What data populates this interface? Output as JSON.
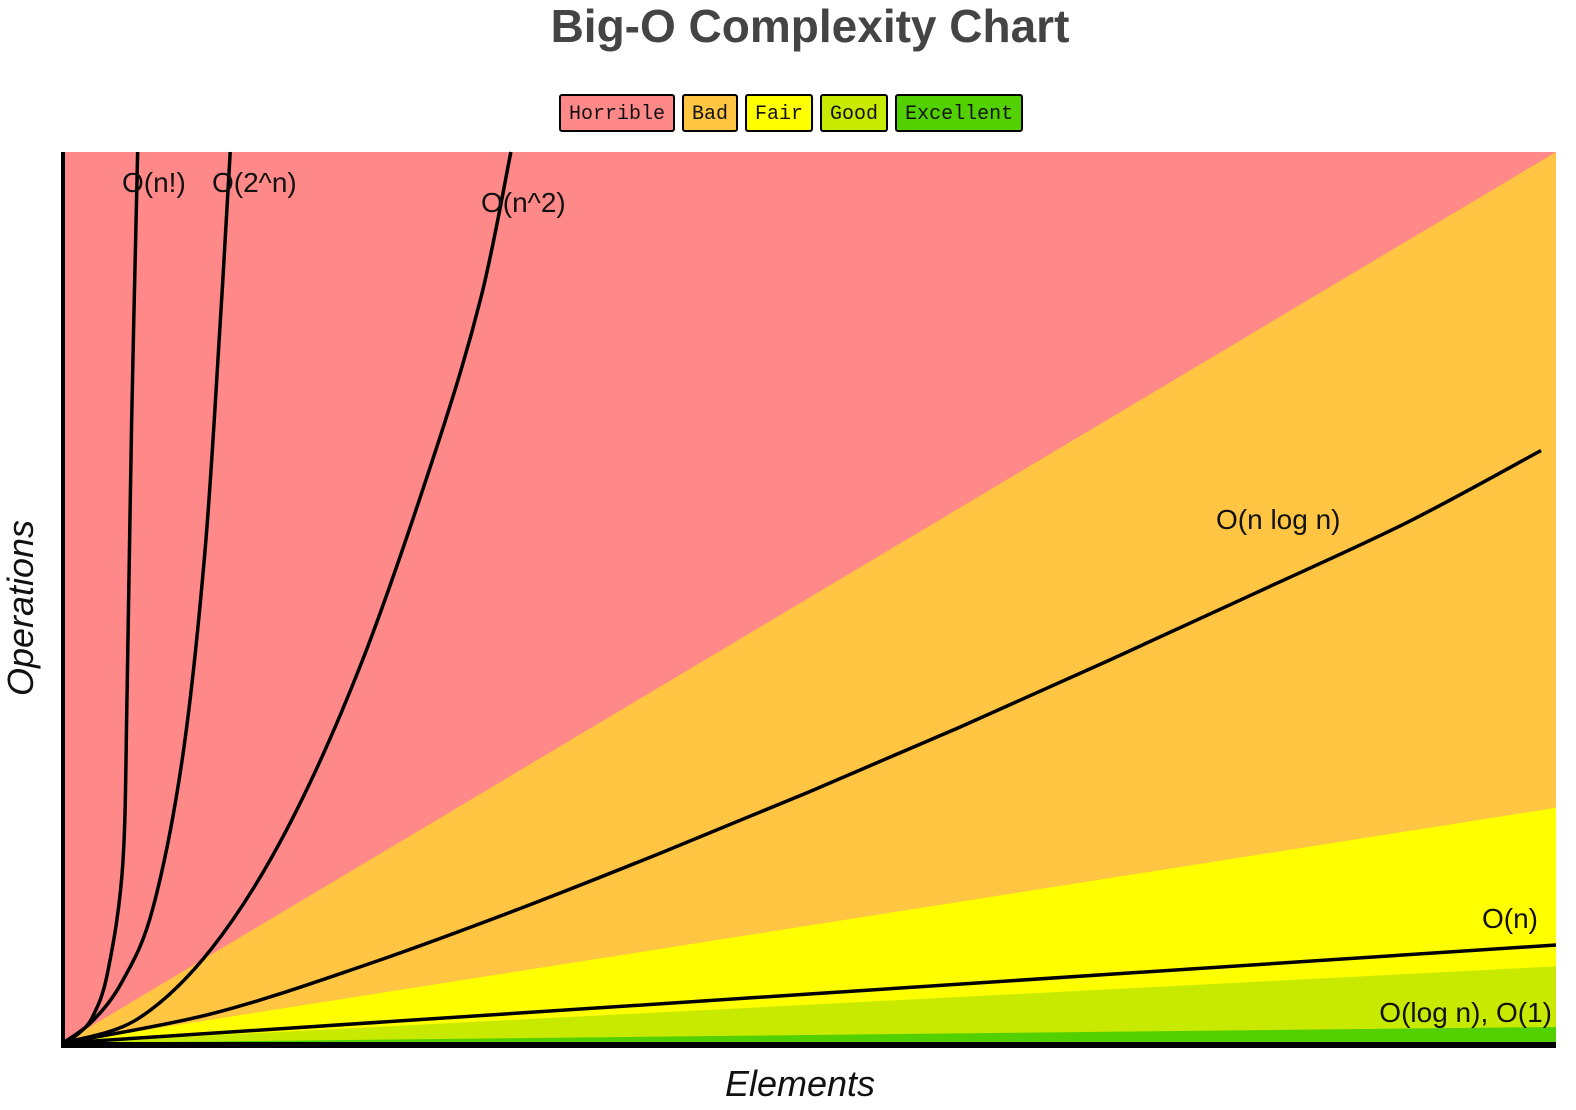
{
  "chart_data": {
    "type": "line",
    "title": "Big-O Complexity Chart",
    "xlabel": "Elements",
    "ylabel": "Operations",
    "grid": false,
    "legend": {
      "placement": "top-center",
      "entries": [
        {
          "label": "Horrible",
          "color": "#ff8989"
        },
        {
          "label": "Bad",
          "color": "#ffc543"
        },
        {
          "label": "Fair",
          "color": "#ffff00"
        },
        {
          "label": "Good",
          "color": "#c8ea00"
        },
        {
          "label": "Excellent",
          "color": "#53d000"
        }
      ]
    },
    "xlim": [
      0,
      100
    ],
    "ylim": [
      0,
      1000
    ],
    "zones": [
      {
        "name": "Horrible",
        "color": "#ff8989",
        "upper_slope": null
      },
      {
        "name": "Bad",
        "color": "#ffc543",
        "upper_slope": 10
      },
      {
        "name": "Fair",
        "color": "#ffff00",
        "upper_slope": 2.64
      },
      {
        "name": "Good",
        "color": "#c8ea00",
        "upper_slope": 0.86
      },
      {
        "name": "Excellent",
        "color": "#53d000",
        "upper_slope": 0.18
      }
    ],
    "series": [
      {
        "name": "O(n!)",
        "x": [
          0,
          1,
          2,
          3,
          4,
          4.3,
          4.6,
          5
        ],
        "y": [
          0,
          10,
          30,
          80,
          200,
          400,
          700,
          1000
        ]
      },
      {
        "name": "O(2^n)",
        "x": [
          0,
          2,
          4,
          6,
          8,
          9.5,
          10.5,
          11.2
        ],
        "y": [
          0,
          25,
          70,
          150,
          320,
          550,
          800,
          1000
        ]
      },
      {
        "name": "O(n^2)",
        "x": [
          0,
          5,
          10,
          15,
          20,
          25,
          28,
          30
        ],
        "y": [
          0,
          27,
          107,
          240,
          427,
          667,
          837,
          1000
        ]
      },
      {
        "name": "O(n log n)",
        "x": [
          0,
          10,
          20,
          30,
          40,
          50,
          60,
          70,
          80,
          90,
          99
        ],
        "y": [
          0,
          33,
          86,
          147,
          213,
          282,
          354,
          429,
          506,
          584,
          665
        ]
      },
      {
        "name": "O(n)",
        "x": [
          0,
          100
        ],
        "y": [
          0,
          110
        ]
      },
      {
        "name": "O(log n), O(1)",
        "x": [
          0,
          100
        ],
        "y": [
          0,
          0
        ]
      }
    ],
    "labels": [
      {
        "text": "O(n!)",
        "series": "O(n!)"
      },
      {
        "text": "O(2^n)",
        "series": "O(2^n)"
      },
      {
        "text": "O(n^2)",
        "series": "O(n^2)"
      },
      {
        "text": "O(n log n)",
        "series": "O(n log n)"
      },
      {
        "text": "O(n)",
        "series": "O(n)"
      },
      {
        "text": "O(log n), O(1)",
        "series": "O(log n), O(1)"
      }
    ]
  }
}
